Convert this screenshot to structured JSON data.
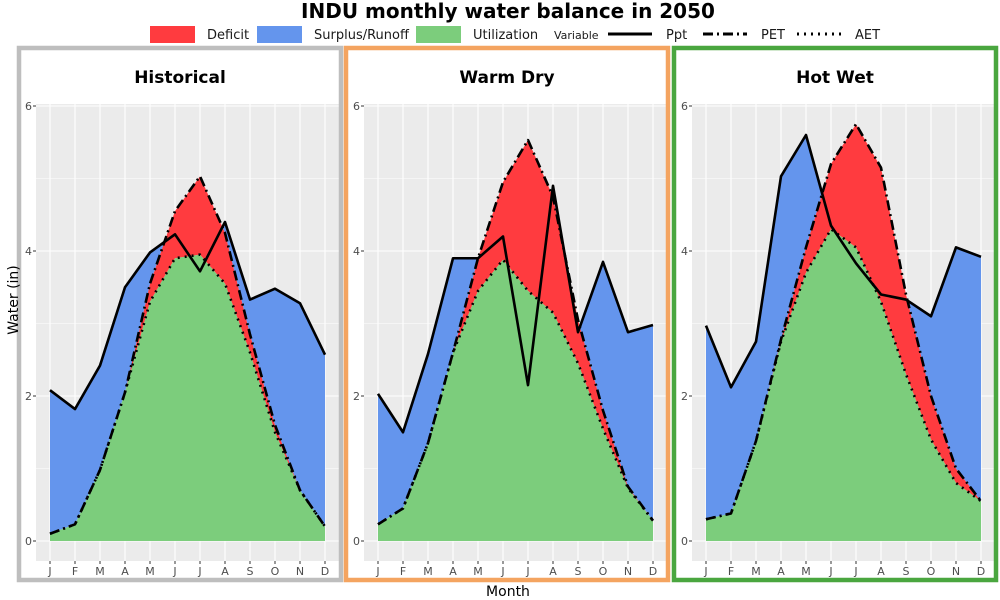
{
  "chart_data": {
    "type": "area",
    "title": "INDU monthly water balance in 2050",
    "xlabel": "Month",
    "ylabel": "Water (in)",
    "ylim": [
      0,
      6
    ],
    "yticks": [
      0,
      2,
      4,
      6
    ],
    "categories": [
      "J",
      "F",
      "M",
      "A",
      "M",
      "J",
      "J",
      "A",
      "S",
      "O",
      "N",
      "D"
    ],
    "legend": {
      "fill": [
        {
          "label": "Deficit",
          "color": "#ff3b3f"
        },
        {
          "label": "Surplus/Runoff",
          "color": "#6495ed"
        },
        {
          "label": "Utilization",
          "color": "#7ccd7c"
        }
      ],
      "line_title": "Variable",
      "lines": [
        {
          "label": "Ppt",
          "style": "solid"
        },
        {
          "label": "PET",
          "style": "dashdot"
        },
        {
          "label": "AET",
          "style": "dotted"
        }
      ]
    },
    "panels": [
      {
        "name": "Historical",
        "border_color": "#bebebe",
        "ppt": [
          2.08,
          1.82,
          2.42,
          3.5,
          3.98,
          4.23,
          3.72,
          4.4,
          3.33,
          3.48,
          3.28,
          2.57
        ],
        "pet": [
          0.1,
          0.23,
          0.98,
          2.05,
          3.55,
          4.55,
          5.03,
          4.25,
          2.85,
          1.6,
          0.7,
          0.2
        ],
        "aet": [
          0.1,
          0.23,
          0.98,
          2.05,
          3.3,
          3.9,
          3.95,
          3.55,
          2.6,
          1.5,
          0.7,
          0.2
        ]
      },
      {
        "name": "Warm Dry",
        "border_color": "#f4a460",
        "ppt": [
          2.03,
          1.5,
          2.58,
          3.9,
          3.9,
          4.2,
          2.15,
          4.9,
          2.88,
          3.85,
          2.88,
          2.98
        ],
        "pet": [
          0.23,
          0.45,
          1.35,
          2.6,
          3.9,
          4.95,
          5.53,
          4.75,
          3.05,
          1.8,
          0.75,
          0.28
        ],
        "aet": [
          0.23,
          0.45,
          1.35,
          2.6,
          3.45,
          3.88,
          3.45,
          3.15,
          2.45,
          1.55,
          0.73,
          0.28
        ]
      },
      {
        "name": "Hot Wet",
        "border_color": "#4aa63f",
        "ppt": [
          2.97,
          2.12,
          2.75,
          5.03,
          5.6,
          4.35,
          3.83,
          3.4,
          3.33,
          3.1,
          4.05,
          3.92
        ],
        "pet": [
          0.3,
          0.38,
          1.38,
          2.78,
          4.05,
          5.2,
          5.75,
          5.15,
          3.4,
          2.0,
          1.0,
          0.55
        ],
        "aet": [
          0.3,
          0.38,
          1.38,
          2.75,
          3.7,
          4.3,
          4.05,
          3.3,
          2.3,
          1.4,
          0.8,
          0.55
        ]
      }
    ]
  },
  "colors": {
    "deficit": "#ff3b3f",
    "surplus": "#6495ed",
    "utilization": "#7ccd7c",
    "panel_bg": "#ebebeb",
    "grid": "#ffffff"
  }
}
